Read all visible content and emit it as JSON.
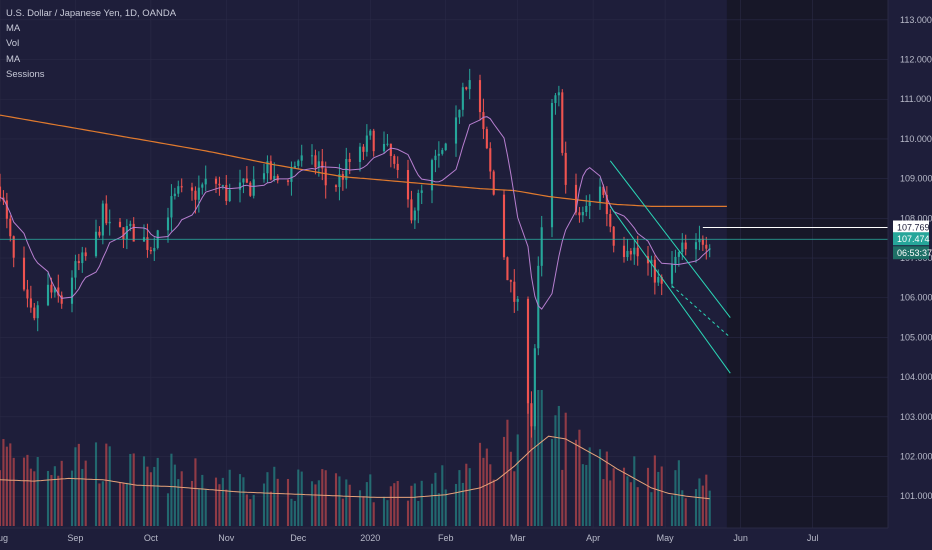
{
  "legend": {
    "title": "U.S. Dollar / Japanese Yen, 1D, OANDA",
    "indicators": [
      "MA",
      "Vol",
      "MA",
      "Sessions"
    ]
  },
  "colors": {
    "background": "#1e1e3a",
    "future_shade": "#171728",
    "up": "#26a69a",
    "down": "#ef5350",
    "ma_long": "#e07a2e",
    "ma_short": "#b77fd0",
    "vol_ma": "#e6a37a",
    "channel": "#2bd6b6",
    "price_line": "#2bb3a3",
    "axis_text": "#b8bac9"
  },
  "chart_data": {
    "type": "candlestick",
    "title": "U.S. Dollar / Japanese Yen, 1D, OANDA",
    "y_range": [
      100.2,
      113.5
    ],
    "y_ticks": [
      "113.000",
      "112.000",
      "111.000",
      "110.000",
      "109.000",
      "108.000",
      "107.000",
      "106.000",
      "105.000",
      "104.000",
      "103.000",
      "102.000",
      "101.000"
    ],
    "y_tick_values": [
      113,
      112,
      111,
      110,
      109,
      108,
      107,
      106,
      105,
      104,
      103,
      102,
      101
    ],
    "x_labels": [
      "Aug",
      "Sep",
      "Oct",
      "Nov",
      "Dec",
      "2020",
      "Feb",
      "Mar",
      "Apr",
      "May",
      "Jun",
      "Jul"
    ],
    "x_label_days": [
      0,
      22,
      44,
      66,
      87,
      108,
      130,
      151,
      173,
      194,
      216,
      237
    ],
    "total_days": 259,
    "last_data_day": 207,
    "price_label": "107.474",
    "price_value": 107.474,
    "countdown_label": "06:53:37",
    "high_marker_label": "107.769",
    "high_marker_value": 107.769,
    "closes": [
      [
        0,
        108.8
      ],
      [
        4,
        106.9
      ],
      [
        6,
        106.2
      ],
      [
        10,
        105.3
      ],
      [
        12,
        106.4
      ],
      [
        15,
        106.1
      ],
      [
        18,
        105.9
      ],
      [
        21,
        106.6
      ],
      [
        24,
        106.9
      ],
      [
        27,
        107.2
      ],
      [
        30,
        108.1
      ],
      [
        33,
        107.5
      ],
      [
        36,
        107.7
      ],
      [
        40,
        107.6
      ],
      [
        44,
        107.3
      ],
      [
        48,
        108.1
      ],
      [
        52,
        108.6
      ],
      [
        55,
        108.5
      ],
      [
        58,
        108.7
      ],
      [
        62,
        109.0
      ],
      [
        66,
        108.6
      ],
      [
        69,
        108.7
      ],
      [
        73,
        108.8
      ],
      [
        77,
        109.3
      ],
      [
        80,
        108.9
      ],
      [
        84,
        109.1
      ],
      [
        87,
        109.5
      ],
      [
        90,
        109.3
      ],
      [
        93,
        109.4
      ],
      [
        96,
        108.6
      ],
      [
        99,
        109.0
      ],
      [
        102,
        109.4
      ],
      [
        105,
        109.6
      ],
      [
        108,
        110.0
      ],
      [
        111,
        109.9
      ],
      [
        114,
        109.5
      ],
      [
        117,
        108.7
      ],
      [
        120,
        108.2
      ],
      [
        123,
        108.6
      ],
      [
        126,
        109.3
      ],
      [
        129,
        109.6
      ],
      [
        132,
        109.7
      ],
      [
        135,
        111.5
      ],
      [
        138,
        111.5
      ],
      [
        141,
        110.1
      ],
      [
        144,
        108.6
      ],
      [
        147,
        107.1
      ],
      [
        149,
        106.2
      ],
      [
        151,
        105.7
      ],
      [
        153,
        104.3
      ],
      [
        155,
        102.9
      ],
      [
        157,
        106.6
      ],
      [
        159,
        108.6
      ],
      [
        161,
        110.8
      ],
      [
        163,
        111.0
      ],
      [
        165,
        108.8
      ],
      [
        167,
        107.8
      ],
      [
        169,
        108.1
      ],
      [
        171,
        108.2
      ],
      [
        173,
        108.5
      ],
      [
        175,
        108.9
      ],
      [
        177,
        108.2
      ],
      [
        179,
        107.5
      ],
      [
        181,
        107.1
      ],
      [
        183,
        107.4
      ],
      [
        185,
        107.2
      ],
      [
        187,
        106.9
      ],
      [
        189,
        106.8
      ],
      [
        191,
        106.6
      ],
      [
        193,
        106.2
      ],
      [
        195,
        106.7
      ],
      [
        197,
        106.9
      ],
      [
        199,
        107.2
      ],
      [
        201,
        107.1
      ],
      [
        203,
        107.2
      ],
      [
        205,
        107.5
      ],
      [
        207,
        107.47
      ]
    ],
    "volume_scale": [
      0,
      100
    ],
    "volumes": [
      [
        0,
        58
      ],
      [
        5,
        55
      ],
      [
        10,
        52
      ],
      [
        15,
        54
      ],
      [
        20,
        56
      ],
      [
        25,
        57
      ],
      [
        30,
        50
      ],
      [
        35,
        44
      ],
      [
        40,
        43
      ],
      [
        45,
        40
      ],
      [
        50,
        42
      ],
      [
        55,
        38
      ],
      [
        60,
        39
      ],
      [
        65,
        37
      ],
      [
        70,
        36
      ],
      [
        75,
        35
      ],
      [
        80,
        35
      ],
      [
        85,
        33
      ],
      [
        90,
        34
      ],
      [
        95,
        32
      ],
      [
        100,
        32
      ],
      [
        105,
        30
      ],
      [
        110,
        31
      ],
      [
        115,
        29
      ],
      [
        120,
        30
      ],
      [
        125,
        33
      ],
      [
        130,
        36
      ],
      [
        135,
        44
      ],
      [
        140,
        48
      ],
      [
        145,
        58
      ],
      [
        150,
        72
      ],
      [
        153,
        88
      ],
      [
        156,
        96
      ],
      [
        159,
        86
      ],
      [
        162,
        78
      ],
      [
        165,
        70
      ],
      [
        170,
        62
      ],
      [
        175,
        55
      ],
      [
        180,
        50
      ],
      [
        185,
        45
      ],
      [
        190,
        43
      ],
      [
        195,
        40
      ],
      [
        200,
        36
      ],
      [
        205,
        34
      ],
      [
        207,
        30
      ]
    ],
    "ma_long": [
      [
        0,
        110.6
      ],
      [
        20,
        110.3
      ],
      [
        40,
        110.0
      ],
      [
        60,
        109.7
      ],
      [
        80,
        109.35
      ],
      [
        100,
        109.05
      ],
      [
        120,
        108.9
      ],
      [
        140,
        108.75
      ],
      [
        150,
        108.7
      ],
      [
        160,
        108.55
      ],
      [
        170,
        108.45
      ],
      [
        180,
        108.35
      ],
      [
        190,
        108.3
      ],
      [
        200,
        108.3
      ],
      [
        207,
        108.3
      ]
    ],
    "vol_ma": [
      [
        0,
        34
      ],
      [
        10,
        33
      ],
      [
        20,
        35
      ],
      [
        30,
        34
      ],
      [
        40,
        30
      ],
      [
        50,
        29
      ],
      [
        60,
        27
      ],
      [
        70,
        25
      ],
      [
        80,
        24
      ],
      [
        90,
        23
      ],
      [
        100,
        22
      ],
      [
        110,
        21
      ],
      [
        120,
        21
      ],
      [
        130,
        23
      ],
      [
        140,
        28
      ],
      [
        145,
        34
      ],
      [
        150,
        44
      ],
      [
        155,
        56
      ],
      [
        160,
        66
      ],
      [
        165,
        64
      ],
      [
        170,
        57
      ],
      [
        175,
        50
      ],
      [
        180,
        42
      ],
      [
        185,
        35
      ],
      [
        190,
        28
      ],
      [
        195,
        24
      ],
      [
        200,
        22
      ],
      [
        207,
        20
      ]
    ],
    "channel_lines": [
      {
        "from": [
          178,
          109.45
        ],
        "to": [
          213,
          105.5
        ]
      },
      {
        "from": [
          178,
          108.3
        ],
        "to": [
          213,
          104.1
        ]
      },
      {
        "from": [
          196,
          106.3
        ],
        "to": [
          213,
          105.0
        ],
        "dashed": true
      }
    ]
  }
}
